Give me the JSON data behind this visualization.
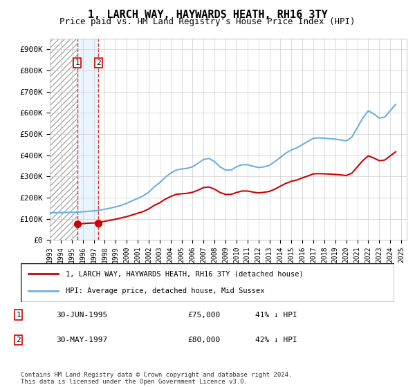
{
  "title": "1, LARCH WAY, HAYWARDS HEATH, RH16 3TY",
  "subtitle": "Price paid vs. HM Land Registry's House Price Index (HPI)",
  "legend_line1": "1, LARCH WAY, HAYWARDS HEATH, RH16 3TY (detached house)",
  "legend_line2": "HPI: Average price, detached house, Mid Sussex",
  "footnote": "Contains HM Land Registry data © Crown copyright and database right 2024.\nThis data is licensed under the Open Government Licence v3.0.",
  "sale1_date": "30-JUN-1995",
  "sale1_price": "£75,000",
  "sale1_hpi": "41% ↓ HPI",
  "sale1_x": 1995.5,
  "sale1_y": 75000,
  "sale2_date": "30-MAY-1997",
  "sale2_price": "£80,000",
  "sale2_hpi": "42% ↓ HPI",
  "sale2_x": 1997.417,
  "sale2_y": 80000,
  "hpi_color": "#6ab0e0",
  "price_color": "#cc0000",
  "hatch_color": "#c8c8c8",
  "ylim": [
    0,
    950000
  ],
  "yticks": [
    0,
    100000,
    200000,
    300000,
    400000,
    500000,
    600000,
    700000,
    800000,
    900000
  ],
  "ytick_labels": [
    "£0",
    "£100K",
    "£200K",
    "£300K",
    "£400K",
    "£500K",
    "£600K",
    "£700K",
    "£800K",
    "£900K"
  ],
  "xlim_start": 1993.0,
  "xlim_end": 2025.5,
  "hpi_years": [
    1993.0,
    1993.5,
    1994.0,
    1994.5,
    1995.0,
    1995.5,
    1996.0,
    1996.5,
    1997.0,
    1997.5,
    1998.0,
    1998.5,
    1999.0,
    1999.5,
    2000.0,
    2000.5,
    2001.0,
    2001.5,
    2002.0,
    2002.5,
    2003.0,
    2003.5,
    2004.0,
    2004.5,
    2005.0,
    2005.5,
    2006.0,
    2006.5,
    2007.0,
    2007.5,
    2008.0,
    2008.5,
    2009.0,
    2009.5,
    2010.0,
    2010.5,
    2011.0,
    2011.5,
    2012.0,
    2012.5,
    2013.0,
    2013.5,
    2014.0,
    2014.5,
    2015.0,
    2015.5,
    2016.0,
    2016.5,
    2017.0,
    2017.5,
    2018.0,
    2018.5,
    2019.0,
    2019.5,
    2020.0,
    2020.5,
    2021.0,
    2021.5,
    2022.0,
    2022.5,
    2023.0,
    2023.5,
    2024.0,
    2024.5
  ],
  "hpi_values": [
    128000,
    128500,
    129000,
    130000,
    130500,
    131000,
    133000,
    135000,
    137000,
    140000,
    145000,
    150000,
    156000,
    163000,
    173000,
    185000,
    196000,
    208000,
    225000,
    250000,
    270000,
    295000,
    315000,
    330000,
    335000,
    338000,
    345000,
    362000,
    380000,
    385000,
    370000,
    345000,
    330000,
    330000,
    345000,
    355000,
    355000,
    348000,
    342000,
    345000,
    352000,
    370000,
    390000,
    410000,
    425000,
    435000,
    450000,
    465000,
    480000,
    482000,
    480000,
    478000,
    476000,
    472000,
    468000,
    485000,
    530000,
    575000,
    610000,
    595000,
    575000,
    580000,
    610000,
    640000
  ],
  "price_years": [
    1993.0,
    1993.5,
    1994.0,
    1994.5,
    1995.0,
    1995.5,
    1996.0,
    1996.5,
    1997.0,
    1997.5,
    1998.0,
    1998.5,
    1999.0,
    1999.5,
    2000.0,
    2000.5,
    2001.0,
    2001.5,
    2002.0,
    2002.5,
    2003.0,
    2003.5,
    2004.0,
    2004.5,
    2005.0,
    2005.5,
    2006.0,
    2006.5,
    2007.0,
    2007.5,
    2008.0,
    2008.5,
    2009.0,
    2009.5,
    2010.0,
    2010.5,
    2011.0,
    2011.5,
    2012.0,
    2012.5,
    2013.0,
    2013.5,
    2014.0,
    2014.5,
    2015.0,
    2015.5,
    2016.0,
    2016.5,
    2017.0,
    2017.5,
    2018.0,
    2018.5,
    2019.0,
    2019.5,
    2020.0,
    2020.5,
    2021.0,
    2021.5,
    2022.0,
    2022.5,
    2023.0,
    2023.5,
    2024.0,
    2024.5
  ],
  "price_values": [
    null,
    null,
    null,
    null,
    null,
    75000,
    77000,
    79000,
    80000,
    83000,
    88000,
    93000,
    98000,
    104000,
    110000,
    118000,
    126000,
    134000,
    146000,
    163000,
    175000,
    192000,
    205000,
    215000,
    218000,
    220000,
    225000,
    235000,
    247000,
    250000,
    240000,
    224000,
    215000,
    215000,
    224000,
    231000,
    231000,
    226000,
    222000,
    225000,
    229000,
    240000,
    254000,
    267000,
    277000,
    283000,
    293000,
    302000,
    312000,
    313000,
    312000,
    311000,
    309000,
    307000,
    304000,
    315000,
    345000,
    374000,
    397000,
    387000,
    374000,
    377000,
    397000,
    416000
  ]
}
